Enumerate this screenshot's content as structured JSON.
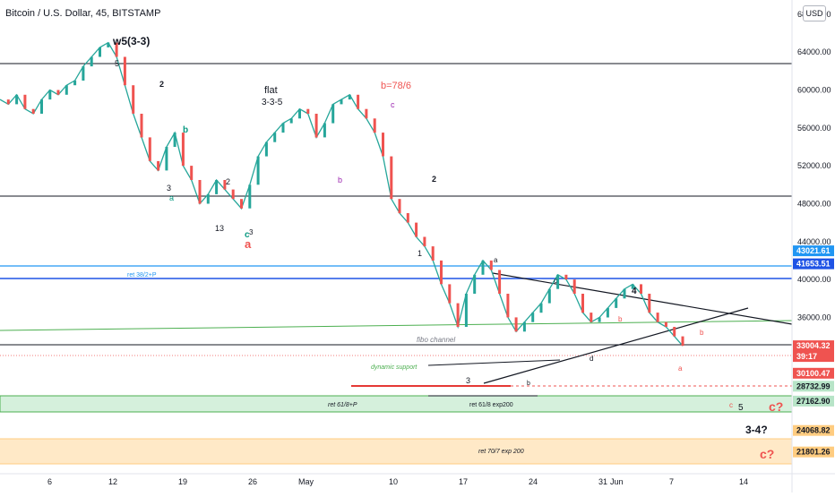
{
  "title": "Bitcoin / U.S. Dollar, 45, BITSTAMP",
  "currency_button": "USD",
  "chart_data": {
    "type": "line",
    "symbol": "Bitcoin / U.S. Dollar",
    "interval": "45",
    "exchange": "BITSTAMP",
    "ylim": [
      19500,
      69500
    ],
    "grid": false,
    "y_ticks": [
      "68000.00",
      "64000.00",
      "60000.00",
      "56000.00",
      "52000.00",
      "48000.00",
      "44000.00",
      "40000.00",
      "36000.00",
      "32000.00"
    ],
    "x_ticks": [
      "6",
      "12",
      "19",
      "26",
      "May",
      "10",
      "17",
      "24",
      "31",
      "Jun",
      "7",
      "14"
    ],
    "series": [
      {
        "values": [
          59000,
          58500,
          59500,
          58000,
          57500,
          59000,
          60000,
          59500,
          60500,
          61000,
          62500,
          63500,
          64500,
          65000,
          63500,
          60500,
          57500,
          55000,
          52500,
          51500,
          54000,
          55500,
          52000,
          50500,
          48000,
          49000,
          50500,
          49500,
          48500,
          47500,
          50000,
          53000,
          54500,
          55500,
          56500,
          57000,
          58000,
          57500,
          55000,
          56500,
          58500,
          59000,
          59500,
          58000,
          57000,
          55500,
          53000,
          48500,
          47000,
          46000,
          44500,
          43500,
          42000,
          39500,
          37500,
          35000,
          38500,
          40500,
          42000,
          41000,
          38500,
          36000,
          34500,
          35500,
          36500,
          37500,
          39000,
          40500,
          40000,
          38500,
          36500,
          35500,
          36000,
          37000,
          38000,
          39000,
          39500,
          38500,
          36500,
          35500,
          35000,
          34000,
          33000
        ]
      }
    ],
    "price_levels": [
      {
        "price": "43021.61",
        "color": "#2196f3"
      },
      {
        "price": "41653.51",
        "color": "#1e53e5"
      },
      {
        "price": "33004.32",
        "countdown": "39:17",
        "color": "#ef5350"
      },
      {
        "price": "30100.47",
        "color": "#ef5350"
      },
      {
        "price": "28732.99",
        "color": "#b7e4c7"
      },
      {
        "price": "27162.90",
        "color": "#b7e4c7"
      },
      {
        "price": "24068.82",
        "color": "#ffcc80"
      },
      {
        "price": "21801.26",
        "color": "#ffcc80"
      }
    ],
    "annotations": {
      "wave_count": "w5(3-3)",
      "flat_title": "flat",
      "flat_sub": "3-3-5",
      "b_label": "b=78/6",
      "ret382": "ret 38/2+P",
      "fibo_channel": "fibo channel",
      "dynamic_support": "dynamic support",
      "ret618p": "ret 61/8+P",
      "ret618exp": "ret 61/8 exp200",
      "ret707": "ret 70/7 exp 200",
      "q34": "3-4?",
      "c_q1": "c?",
      "c_q2": "c?",
      "five": "5",
      "wave_a": "a",
      "wave_c": "c",
      "wave_1": "1",
      "wave_2": "2",
      "wave_3": "3",
      "wave_4": "4",
      "wave_5": "5",
      "wave_b": "b",
      "wave_d": "d",
      "wave_13": "13"
    },
    "colors": {
      "up": "#26a69a",
      "down": "#ef5350",
      "wave_black": "#131722",
      "wave_red": "#ef5350",
      "wave_teal": "#089981",
      "wave_purple": "#9c27b0",
      "wave_orange": "#ff9800",
      "channel_green": "#4caf50"
    }
  }
}
